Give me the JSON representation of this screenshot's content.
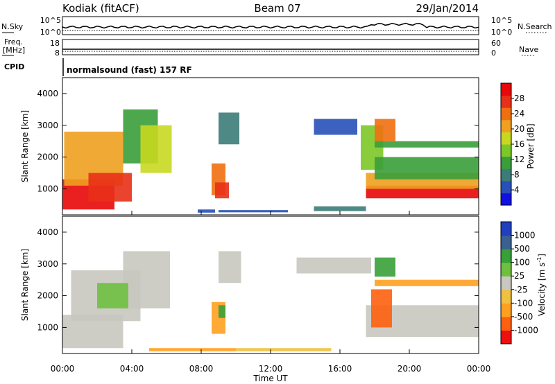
{
  "header": {
    "station": "Kodiak (fitACF)",
    "beam": "Beam 07",
    "date": "29/Jan/2014"
  },
  "top_panels": {
    "nsky_label": "N.Sky",
    "nsky_tick_hi": "10^5",
    "nsky_tick_lo": "10^0",
    "nsearch_label": "N.Search",
    "freq_label_1": "Freq.",
    "freq_label_2": "[MHz]",
    "freq_tick_hi": "18",
    "freq_tick_lo": "8",
    "nave_label": "Nave",
    "nave_tick_hi": "60",
    "nave_tick_lo": "0",
    "cpid_label": "CPID",
    "cpid_text": "normalsound (fast) 157 RF"
  },
  "colors": {
    "power": [
      "#1010e0",
      "#2850b8",
      "#3c7c78",
      "#3a9e3a",
      "#7cc828",
      "#c8d820",
      "#f0a020",
      "#f07010",
      "#e83018",
      "#e80808"
    ],
    "velocity": [
      "#ee1010",
      "#ff6010",
      "#ffa020",
      "#f0c040",
      "#c8c8c0",
      "#70c040",
      "#38a038",
      "#3a6090",
      "#2040c0"
    ]
  },
  "chart_data": [
    {
      "type": "heatmap",
      "name": "power",
      "ylabel": "Slant Range [km]",
      "xlim": [
        0,
        24
      ],
      "ylim": [
        180,
        4500
      ],
      "yticks": [
        1000,
        2000,
        3000,
        4000
      ],
      "colorbar": {
        "label": "Power [dB]",
        "range": [
          0,
          32
        ],
        "ticks": [
          "4",
          "8",
          "12",
          "16",
          "20",
          "24",
          "28"
        ]
      },
      "regions": [
        {
          "t": [
            0.0,
            3.0
          ],
          "r": [
            350,
            1300
          ],
          "c": 9
        },
        {
          "t": [
            0.1,
            3.5
          ],
          "r": [
            1100,
            2800
          ],
          "c": 6
        },
        {
          "t": [
            1.5,
            4.0
          ],
          "r": [
            600,
            1500
          ],
          "c": 8
        },
        {
          "t": [
            3.5,
            5.5
          ],
          "r": [
            1800,
            3500
          ],
          "c": 3
        },
        {
          "t": [
            4.5,
            6.3
          ],
          "r": [
            1500,
            3000
          ],
          "c": 5
        },
        {
          "t": [
            7.8,
            8.8
          ],
          "r": [
            250,
            350
          ],
          "c": 1
        },
        {
          "t": [
            8.6,
            9.4
          ],
          "r": [
            800,
            1800
          ],
          "c": 7
        },
        {
          "t": [
            8.8,
            9.6
          ],
          "r": [
            700,
            1200
          ],
          "c": 8
        },
        {
          "t": [
            9.0,
            10.2
          ],
          "r": [
            2400,
            3400
          ],
          "c": 2
        },
        {
          "t": [
            9.0,
            13.0
          ],
          "r": [
            260,
            330
          ],
          "c": 1
        },
        {
          "t": [
            14.5,
            17.0
          ],
          "r": [
            2700,
            3200
          ],
          "c": 1
        },
        {
          "t": [
            14.5,
            17.5
          ],
          "r": [
            300,
            450
          ],
          "c": 2
        },
        {
          "t": [
            17.2,
            18.5
          ],
          "r": [
            1600,
            3000
          ],
          "c": 4
        },
        {
          "t": [
            17.5,
            24.0
          ],
          "r": [
            700,
            1100
          ],
          "c": 9
        },
        {
          "t": [
            17.5,
            24.0
          ],
          "r": [
            1000,
            1500
          ],
          "c": 6
        },
        {
          "t": [
            18.0,
            24.0
          ],
          "r": [
            1300,
            2000
          ],
          "c": 3
        },
        {
          "t": [
            18.0,
            24.0
          ],
          "r": [
            2300,
            2500
          ],
          "c": 3
        },
        {
          "t": [
            18.0,
            19.2
          ],
          "r": [
            2500,
            3200
          ],
          "c": 7
        }
      ]
    },
    {
      "type": "heatmap",
      "name": "velocity",
      "ylabel": "Slant Range [km]",
      "xlabel": "Time UT",
      "xlim": [
        0,
        24
      ],
      "ylim": [
        180,
        4500
      ],
      "yticks": [
        1000,
        2000,
        3000,
        4000
      ],
      "xticks": [
        "00:00",
        "04:00",
        "08:00",
        "12:00",
        "16:00",
        "20:00",
        "00:00"
      ],
      "colorbar": {
        "label": "Velocity [m s^-1]",
        "ticks": [
          "-1000",
          "-500",
          "-100",
          "-25",
          "25",
          "100",
          "500",
          "1000"
        ]
      },
      "regions": [
        {
          "t": [
            0.0,
            3.5
          ],
          "r": [
            350,
            1400
          ],
          "c": 4
        },
        {
          "t": [
            0.5,
            4.5
          ],
          "r": [
            1200,
            2800
          ],
          "c": 4
        },
        {
          "t": [
            3.5,
            6.2
          ],
          "r": [
            1600,
            3400
          ],
          "c": 4
        },
        {
          "t": [
            2.0,
            3.8
          ],
          "r": [
            1600,
            2400
          ],
          "c": 5
        },
        {
          "t": [
            5.0,
            10.0
          ],
          "r": [
            250,
            350
          ],
          "c": 2
        },
        {
          "t": [
            8.6,
            9.4
          ],
          "r": [
            800,
            1800
          ],
          "c": 2
        },
        {
          "t": [
            9.0,
            9.4
          ],
          "r": [
            1300,
            1700
          ],
          "c": 6
        },
        {
          "t": [
            9.0,
            10.3
          ],
          "r": [
            2400,
            3400
          ],
          "c": 4
        },
        {
          "t": [
            10.0,
            15.5
          ],
          "r": [
            250,
            350
          ],
          "c": 3
        },
        {
          "t": [
            13.5,
            17.8
          ],
          "r": [
            2700,
            3200
          ],
          "c": 4
        },
        {
          "t": [
            17.5,
            24.0
          ],
          "r": [
            700,
            1700
          ],
          "c": 4
        },
        {
          "t": [
            18.0,
            24.0
          ],
          "r": [
            2300,
            2500
          ],
          "c": 2
        },
        {
          "t": [
            17.8,
            19.0
          ],
          "r": [
            1000,
            2200
          ],
          "c": 1
        },
        {
          "t": [
            18.0,
            19.2
          ],
          "r": [
            2600,
            3200
          ],
          "c": 6
        }
      ]
    }
  ]
}
